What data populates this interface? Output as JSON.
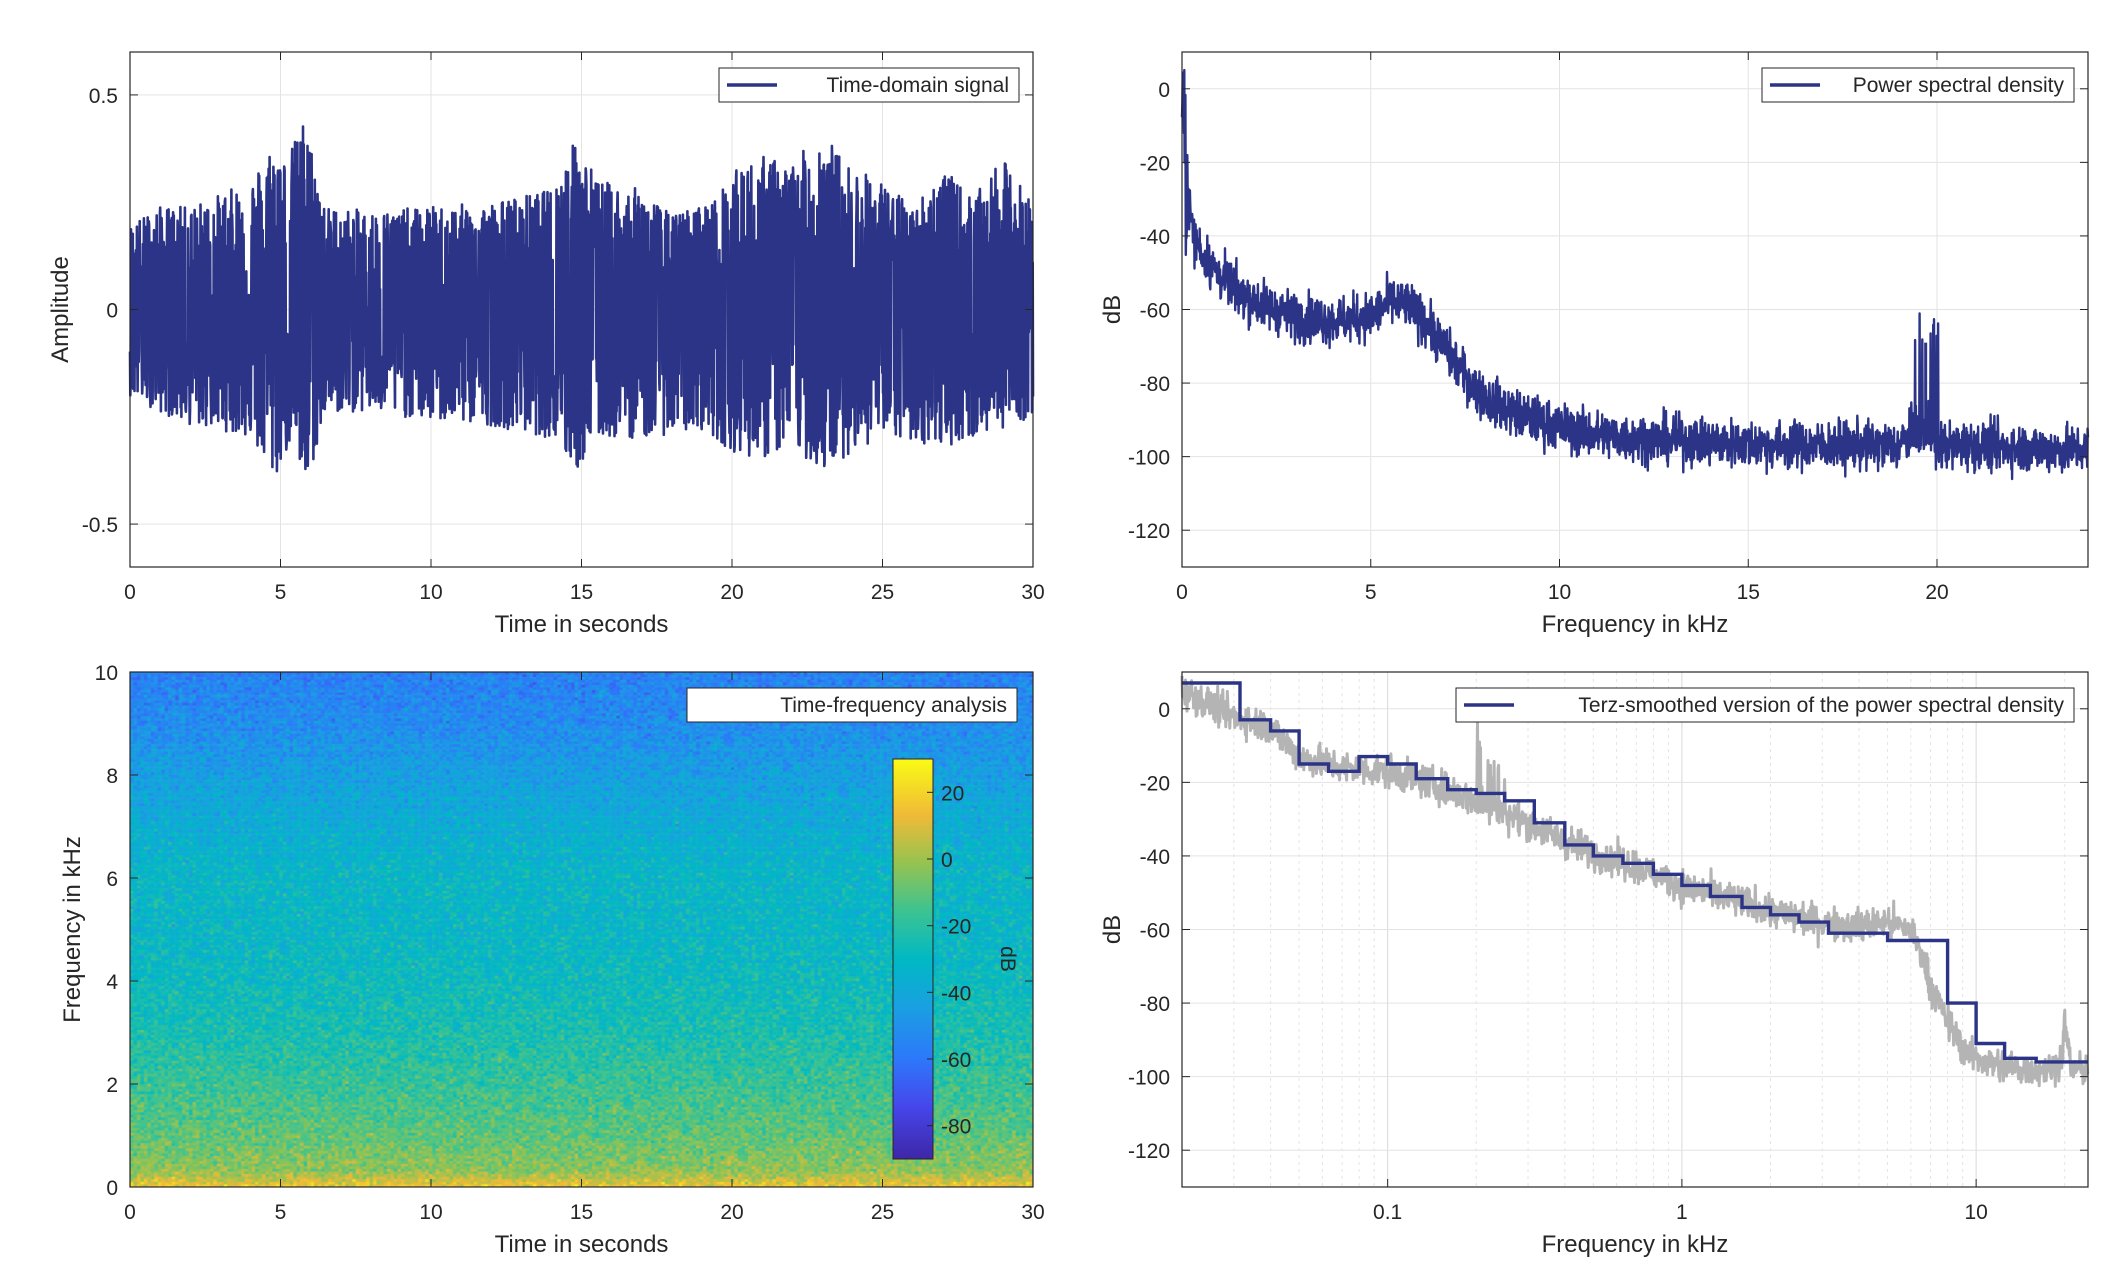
{
  "chart_data": [
    {
      "type": "line",
      "legend": "Time-domain signal",
      "legend_position": "top-right",
      "xlabel": "Time in seconds",
      "ylabel": "Amplitude",
      "xlim": [
        0,
        30
      ],
      "ylim": [
        -0.6,
        0.6
      ],
      "xticks": [
        "0",
        "5",
        "10",
        "15",
        "20",
        "25",
        "30"
      ],
      "yticks": [
        "-0.5",
        "0",
        "0.5"
      ],
      "grid": true,
      "color": "#2b3486",
      "envelope_top": [
        [
          0,
          0.2
        ],
        [
          1,
          0.24
        ],
        [
          2,
          0.24
        ],
        [
          3,
          0.27
        ],
        [
          4,
          0.3
        ],
        [
          4.8,
          0.4
        ],
        [
          5.2,
          0.35
        ],
        [
          5.8,
          0.45
        ],
        [
          6.5,
          0.24
        ],
        [
          8,
          0.23
        ],
        [
          10,
          0.24
        ],
        [
          12,
          0.25
        ],
        [
          14,
          0.28
        ],
        [
          14.8,
          0.4
        ],
        [
          15.6,
          0.3
        ],
        [
          17,
          0.28
        ],
        [
          18,
          0.22
        ],
        [
          19.5,
          0.26
        ],
        [
          20,
          0.32
        ],
        [
          21,
          0.36
        ],
        [
          22,
          0.34
        ],
        [
          23,
          0.42
        ],
        [
          23.8,
          0.34
        ],
        [
          25,
          0.3
        ],
        [
          26,
          0.24
        ],
        [
          27,
          0.33
        ],
        [
          28,
          0.26
        ],
        [
          29,
          0.35
        ],
        [
          30,
          0.25
        ]
      ],
      "envelope_bottom": [
        [
          0,
          -0.2
        ],
        [
          1,
          -0.24
        ],
        [
          2,
          -0.27
        ],
        [
          3,
          -0.28
        ],
        [
          4,
          -0.3
        ],
        [
          4.8,
          -0.4
        ],
        [
          5.4,
          -0.3
        ],
        [
          5.8,
          -0.44
        ],
        [
          6.5,
          -0.24
        ],
        [
          8,
          -0.24
        ],
        [
          10,
          -0.26
        ],
        [
          12,
          -0.27
        ],
        [
          14,
          -0.3
        ],
        [
          14.8,
          -0.38
        ],
        [
          15.6,
          -0.3
        ],
        [
          17,
          -0.3
        ],
        [
          19,
          -0.28
        ],
        [
          20,
          -0.33
        ],
        [
          21,
          -0.35
        ],
        [
          22,
          -0.32
        ],
        [
          23,
          -0.38
        ],
        [
          24,
          -0.33
        ],
        [
          25,
          -0.3
        ],
        [
          27,
          -0.32
        ],
        [
          28,
          -0.3
        ],
        [
          30,
          -0.25
        ]
      ]
    },
    {
      "type": "line",
      "legend": "Power spectral density",
      "legend_position": "top-right",
      "xlabel": "Frequency in kHz",
      "ylabel": "dB",
      "xlim": [
        0,
        24
      ],
      "ylim": [
        -130,
        10
      ],
      "xticks": [
        "0",
        "5",
        "10",
        "15",
        "20"
      ],
      "yticks": [
        "0",
        "-20",
        "-40",
        "-60",
        "-80",
        "-100",
        "-120"
      ],
      "grid": true,
      "color": "#2b3486",
      "x": [
        0,
        0.1,
        0.3,
        0.6,
        1,
        1.5,
        2,
        3,
        4,
        5,
        5.5,
        6,
        6.5,
        7,
        7.5,
        8,
        9,
        10,
        11,
        12,
        13,
        14,
        15,
        16,
        17,
        18,
        19,
        19.3,
        19.8,
        20,
        21,
        22,
        23,
        24
      ],
      "y": [
        5,
        -25,
        -40,
        -46,
        -51,
        -55,
        -58,
        -62,
        -63,
        -62,
        -58,
        -59,
        -64,
        -71,
        -78,
        -84,
        -89,
        -92,
        -94,
        -95,
        -95.5,
        -96,
        -96.5,
        -97,
        -97,
        -97,
        -97,
        -94,
        -92,
        -97,
        -97,
        -97.5,
        -98,
        -98
      ],
      "spike": {
        "x": 19.7,
        "y": -69
      }
    },
    {
      "type": "heatmap",
      "legend": "Time-frequency analysis",
      "legend_position": "top-right",
      "xlabel": "Time in seconds",
      "ylabel": "Frequency in kHz",
      "xlim": [
        0,
        30
      ],
      "ylim": [
        0,
        10
      ],
      "xticks": [
        "0",
        "5",
        "10",
        "15",
        "20",
        "25",
        "30"
      ],
      "yticks": [
        "0",
        "2",
        "4",
        "6",
        "8",
        "10"
      ],
      "colorbar": {
        "label": "dB",
        "range": [
          -90,
          30
        ],
        "ticks": [
          "20",
          "0",
          "-20",
          "-40",
          "-60",
          "-80"
        ]
      },
      "level_by_frequency_khz": [
        [
          0,
          15
        ],
        [
          0.3,
          -2
        ],
        [
          1,
          -10
        ],
        [
          2,
          -17
        ],
        [
          3,
          -24
        ],
        [
          4,
          -28
        ],
        [
          5,
          -31
        ],
        [
          6,
          -31
        ],
        [
          7,
          -37
        ],
        [
          8,
          -44
        ],
        [
          9,
          -52
        ],
        [
          10,
          -56
        ]
      ]
    },
    {
      "type": "line",
      "legend": "Terz-smoothed version of the power spectral density",
      "legend_position": "top-right",
      "xlabel": "Frequency in kHz",
      "ylabel": "dB",
      "xscale": "log",
      "xlim": [
        0.02,
        24
      ],
      "ylim": [
        -130,
        10
      ],
      "xticks": [
        "0.1",
        "1",
        "10"
      ],
      "yticks": [
        "0",
        "-20",
        "-40",
        "-60",
        "-80",
        "-100",
        "-120"
      ],
      "grid": true,
      "series": [
        {
          "name": "Terz-smoothed version of the power spectral density",
          "color": "#2b3486",
          "x": [
            0.02,
            0.025,
            0.0315,
            0.04,
            0.05,
            0.063,
            0.08,
            0.1,
            0.125,
            0.16,
            0.2,
            0.25,
            0.315,
            0.4,
            0.5,
            0.63,
            0.8,
            1,
            1.25,
            1.6,
            2,
            2.5,
            3.15,
            4,
            5,
            6.3,
            8,
            10,
            12.5,
            16,
            20,
            24
          ],
          "y": [
            7,
            7,
            -3,
            -6,
            -15,
            -17,
            -13,
            -15,
            -19,
            -22,
            -23,
            -25,
            -31,
            -37,
            -40,
            -42,
            -45,
            -48,
            -51,
            -54,
            -56,
            -58,
            -61,
            -61,
            -63,
            -63,
            -80,
            -91,
            -95,
            -96,
            -96,
            -96
          ]
        },
        {
          "name": "",
          "color": "#b4b4b4",
          "x": [
            0.02,
            0.03,
            0.04,
            0.05,
            0.07,
            0.1,
            0.15,
            0.2,
            0.3,
            0.4,
            0.5,
            0.7,
            1,
            1.5,
            2,
            3,
            4,
            5,
            6,
            6.5,
            7,
            8,
            9,
            10,
            12,
            15,
            18,
            19.5,
            20,
            21,
            24
          ],
          "y": [
            5,
            -2,
            -5,
            -13,
            -16,
            -17,
            -21,
            -25,
            -31,
            -36,
            -39,
            -43,
            -48,
            -52,
            -55,
            -58,
            -59,
            -58,
            -60,
            -66,
            -75,
            -85,
            -92,
            -95,
            -97,
            -98,
            -98,
            -95,
            -85,
            -98,
            -98
          ],
          "spike": {
            "x": 19.7,
            "y": -68
          }
        }
      ]
    }
  ]
}
